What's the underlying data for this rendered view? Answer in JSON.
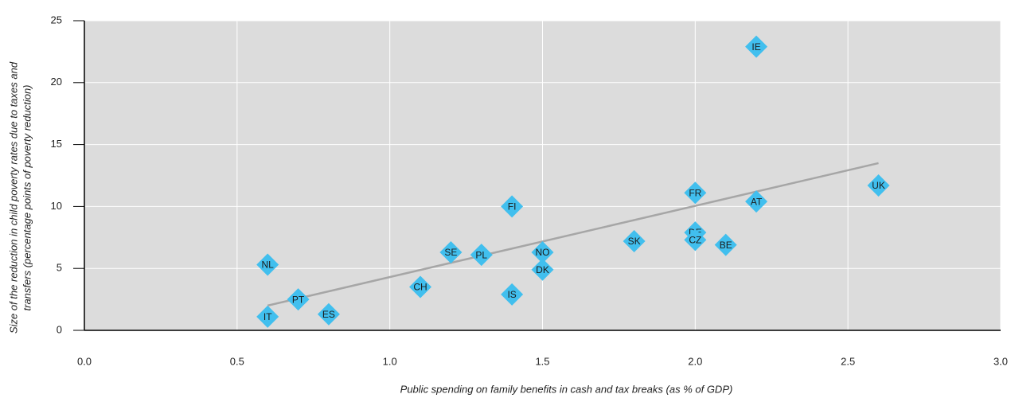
{
  "chart_data": {
    "type": "scatter",
    "xlabel": "Public spending on family benefits in cash and tax breaks (as % of GDP)",
    "ylabel": [
      "Size of the reduction in child poverty rates due to taxes and",
      "transfers (percentage points of poverty reduction)"
    ],
    "labels": [
      "IE",
      "UK",
      "FR",
      "AT",
      "FI",
      "DE",
      "CZ",
      "BE",
      "SK",
      "NO",
      "SE",
      "PL",
      "NL",
      "DK",
      "CH",
      "IS",
      "PT",
      "ES",
      "IT"
    ],
    "x": [
      2.2,
      2.6,
      2.0,
      2.2,
      1.4,
      2.0,
      2.0,
      2.1,
      1.8,
      1.5,
      1.2,
      1.3,
      0.6,
      1.5,
      1.1,
      1.4,
      0.7,
      0.8,
      0.6
    ],
    "values": [
      22.9,
      11.7,
      11.1,
      10.4,
      10.0,
      7.9,
      7.3,
      6.9,
      7.2,
      6.3,
      6.3,
      6.1,
      5.3,
      4.9,
      3.5,
      2.9,
      2.5,
      1.3,
      1.1
    ],
    "color": "#41bfee",
    "trend_line": {
      "x": [
        0.6,
        2.6
      ],
      "values": [
        2.0,
        13.5
      ],
      "color": "#a6a6a6"
    },
    "xlim": [
      0,
      3
    ],
    "xticks": [
      {
        "value": 0,
        "label": "0.0"
      },
      0.5,
      {
        "value": 1,
        "label": "1.0"
      },
      1.5,
      {
        "value": 2,
        "label": "2.0"
      },
      2.5,
      {
        "value": 3,
        "label": "3.0"
      }
    ],
    "ylim": [
      0,
      25
    ],
    "yticks": [
      0,
      5,
      10,
      15,
      20,
      25
    ],
    "grid": true
  }
}
